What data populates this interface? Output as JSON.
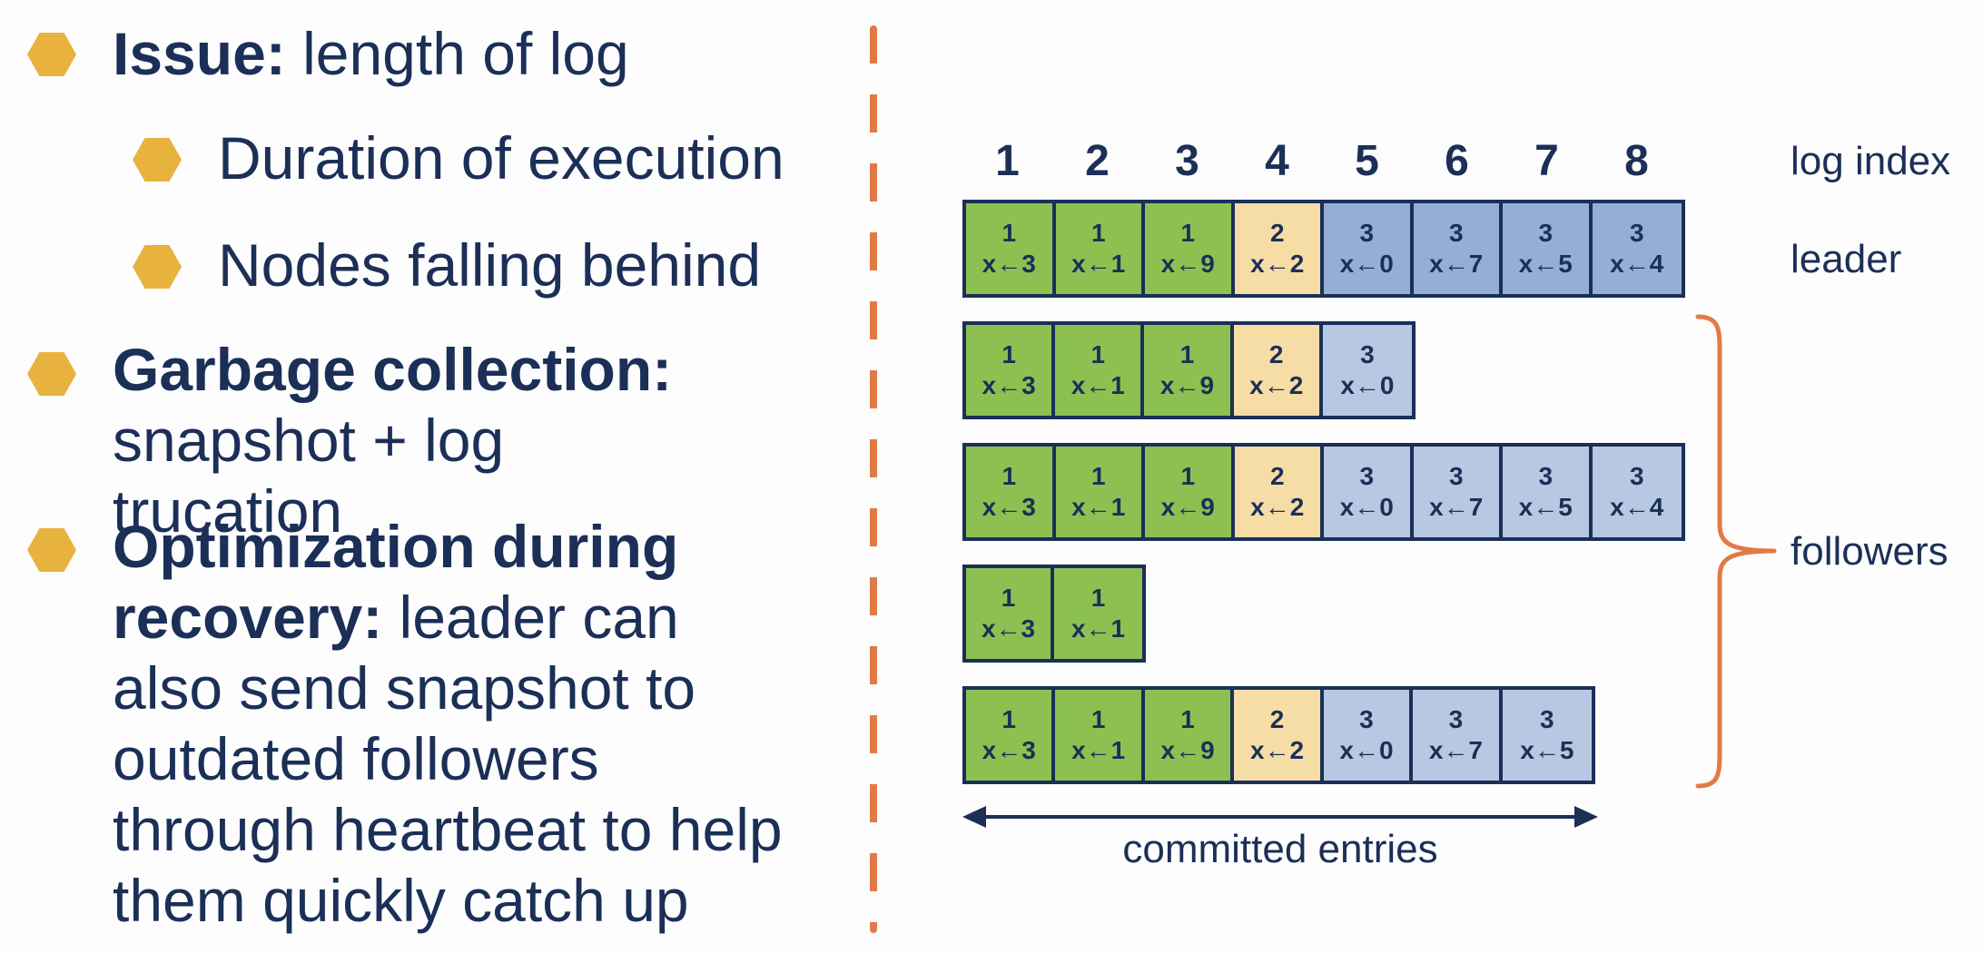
{
  "bullets": [
    {
      "bold": "Issue:",
      "text": " length of log"
    },
    {
      "bold": "",
      "text": "Duration of execution"
    },
    {
      "bold": "",
      "text": "Nodes falling behind"
    },
    {
      "bold": "Garbage collection:",
      "text": "snapshot + log trucation"
    },
    {
      "bold": "Optimization during recovery:",
      "text": " leader can also send snapshot to outdated followers through heartbeat to help them quickly catch up"
    }
  ],
  "diagram": {
    "log_indices": [
      "1",
      "2",
      "3",
      "4",
      "5",
      "6",
      "7",
      "8"
    ],
    "labels": {
      "log_index": "log index",
      "leader": "leader",
      "followers": "followers",
      "committed": "committed entries"
    },
    "rows": [
      {
        "role": "leader",
        "entries": [
          {
            "term": "1",
            "cmd": "x←3"
          },
          {
            "term": "1",
            "cmd": "x←1"
          },
          {
            "term": "1",
            "cmd": "x←9"
          },
          {
            "term": "2",
            "cmd": "x←2"
          },
          {
            "term": "3",
            "cmd": "x←0"
          },
          {
            "term": "3",
            "cmd": "x←7"
          },
          {
            "term": "3",
            "cmd": "x←5"
          },
          {
            "term": "3",
            "cmd": "x←4"
          }
        ]
      },
      {
        "role": "follower",
        "entries": [
          {
            "term": "1",
            "cmd": "x←3"
          },
          {
            "term": "1",
            "cmd": "x←1"
          },
          {
            "term": "1",
            "cmd": "x←9"
          },
          {
            "term": "2",
            "cmd": "x←2"
          },
          {
            "term": "3",
            "cmd": "x←0"
          }
        ]
      },
      {
        "role": "follower",
        "entries": [
          {
            "term": "1",
            "cmd": "x←3"
          },
          {
            "term": "1",
            "cmd": "x←1"
          },
          {
            "term": "1",
            "cmd": "x←9"
          },
          {
            "term": "2",
            "cmd": "x←2"
          },
          {
            "term": "3",
            "cmd": "x←0"
          },
          {
            "term": "3",
            "cmd": "x←7"
          },
          {
            "term": "3",
            "cmd": "x←5"
          },
          {
            "term": "3",
            "cmd": "x←4"
          }
        ]
      },
      {
        "role": "follower",
        "entries": [
          {
            "term": "1",
            "cmd": "x←3"
          },
          {
            "term": "1",
            "cmd": "x←1"
          }
        ]
      },
      {
        "role": "follower",
        "entries": [
          {
            "term": "1",
            "cmd": "x←3"
          },
          {
            "term": "1",
            "cmd": "x←1"
          },
          {
            "term": "1",
            "cmd": "x←9"
          },
          {
            "term": "2",
            "cmd": "x←2"
          },
          {
            "term": "3",
            "cmd": "x←0"
          },
          {
            "term": "3",
            "cmd": "x←7"
          },
          {
            "term": "3",
            "cmd": "x←5"
          }
        ]
      }
    ]
  },
  "colors": {
    "text": "#1b2f57",
    "bullet": "#e8b23e",
    "accent": "#e27a45",
    "term_1": "#8cc152",
    "term_2": "#f6dda6",
    "term_3": "#b7c9e2",
    "term_3_leader": "#94afd6"
  }
}
